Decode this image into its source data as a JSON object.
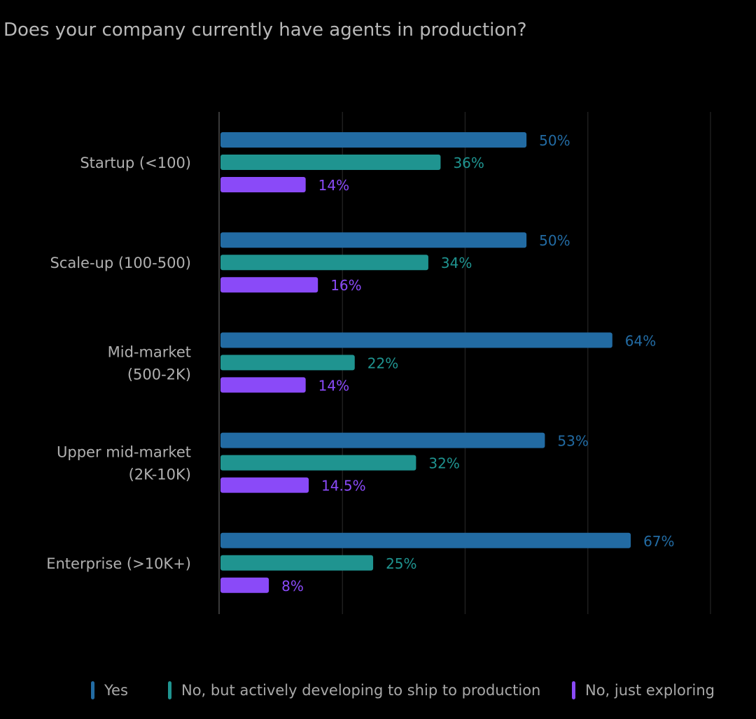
{
  "chart_data": {
    "type": "bar",
    "orientation": "horizontal",
    "title": "Does your company currently have agents in production?",
    "categories": [
      [
        "Startup (<100)"
      ],
      [
        "Scale-up (100-500)"
      ],
      [
        "Mid-market",
        "(500-2K)"
      ],
      [
        "Upper mid-market",
        "(2K-10K)"
      ],
      [
        "Enterprise (>10K+)"
      ]
    ],
    "series": [
      {
        "name": "Yes",
        "color": "#226ba3",
        "values": [
          50,
          50,
          64,
          53,
          67
        ],
        "labels": [
          "50%",
          "50%",
          "64%",
          "53%",
          "67%"
        ]
      },
      {
        "name": "No, but actively developing to ship to production",
        "color": "#1f9490",
        "values": [
          36,
          34,
          22,
          32,
          25
        ],
        "labels": [
          "36%",
          "34%",
          "22%",
          "32%",
          "25%"
        ]
      },
      {
        "name": "No, just exploring",
        "color": "#8a4af8",
        "values": [
          14,
          16,
          14,
          14.5,
          8
        ],
        "labels": [
          "14%",
          "16%",
          "14%",
          "14.5%",
          "8%"
        ]
      }
    ],
    "xlim": [
      0,
      80
    ],
    "grid": true,
    "legend": "bottom"
  }
}
